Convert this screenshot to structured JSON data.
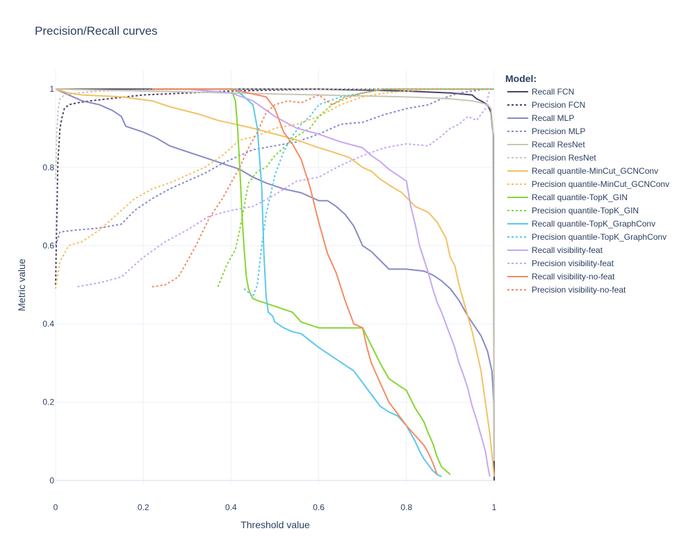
{
  "chart_data": {
    "type": "line",
    "title": "Precision/Recall curves",
    "xlabel": "Threshold value",
    "ylabel": "Metric value",
    "xlim": [
      0,
      1
    ],
    "ylim": [
      -0.01,
      1.05
    ],
    "xticks": [
      0,
      0.2,
      0.4,
      0.6,
      0.8,
      1
    ],
    "xtick_labels": [
      "0",
      "0.2",
      "0.4",
      "0.6",
      "0.8",
      "1"
    ],
    "yticks": [
      0,
      0.2,
      0.4,
      0.6,
      0.8,
      1
    ],
    "ytick_labels": [
      "0",
      "0.2",
      "0.4",
      "0.6",
      "0.8",
      "1"
    ],
    "grid": true,
    "legend_title": "Model:",
    "legend_position": "right",
    "series": [
      {
        "name": "Recall FCN",
        "color": "#4b4160",
        "dash": "solid",
        "x": [
          0,
          0.4,
          0.6,
          0.8,
          0.9,
          0.95,
          0.96,
          0.97,
          0.985,
          0.993,
          0.998,
          1.0
        ],
        "y": [
          1.0,
          1.0,
          1.0,
          0.995,
          0.99,
          0.985,
          0.975,
          0.97,
          0.96,
          0.94,
          0.88,
          0.0
        ]
      },
      {
        "name": "Precision FCN",
        "color": "#4b4160",
        "dash": "dot",
        "x": [
          0,
          0.002,
          0.005,
          0.01,
          0.015,
          0.02,
          0.03,
          0.05,
          0.08,
          0.12,
          0.2,
          0.3,
          0.4,
          0.6,
          0.8,
          1.0
        ],
        "y": [
          0.5,
          0.63,
          0.81,
          0.9,
          0.93,
          0.95,
          0.96,
          0.965,
          0.97,
          0.975,
          0.985,
          0.99,
          0.995,
          1.0,
          1.0,
          1.0
        ]
      },
      {
        "name": "Recall MLP",
        "color": "#8789c8",
        "dash": "solid",
        "x": [
          0,
          0.02,
          0.06,
          0.1,
          0.13,
          0.15,
          0.16,
          0.2,
          0.23,
          0.26,
          0.3,
          0.34,
          0.38,
          0.42,
          0.45,
          0.48,
          0.52,
          0.56,
          0.6,
          0.62,
          0.64,
          0.66,
          0.68,
          0.7,
          0.72,
          0.76,
          0.8,
          0.84,
          0.86,
          0.88,
          0.9,
          0.92,
          0.94,
          0.955,
          0.97,
          0.985,
          0.995,
          1.0
        ],
        "y": [
          1.0,
          0.99,
          0.97,
          0.96,
          0.945,
          0.93,
          0.905,
          0.89,
          0.875,
          0.855,
          0.84,
          0.825,
          0.81,
          0.795,
          0.775,
          0.76,
          0.745,
          0.735,
          0.715,
          0.715,
          0.7,
          0.68,
          0.65,
          0.6,
          0.585,
          0.54,
          0.54,
          0.535,
          0.525,
          0.51,
          0.49,
          0.46,
          0.42,
          0.395,
          0.37,
          0.33,
          0.28,
          0.18
        ]
      },
      {
        "name": "Precision MLP",
        "color": "#8789c8",
        "dash": "dot",
        "x": [
          0,
          0.01,
          0.05,
          0.1,
          0.15,
          0.18,
          0.22,
          0.26,
          0.3,
          0.34,
          0.38,
          0.42,
          0.45,
          0.5,
          0.55,
          0.6,
          0.65,
          0.7,
          0.75,
          0.8,
          0.85,
          0.88,
          0.92,
          0.95,
          0.98,
          1.0
        ],
        "y": [
          0.6,
          0.635,
          0.64,
          0.645,
          0.655,
          0.69,
          0.72,
          0.745,
          0.765,
          0.785,
          0.81,
          0.83,
          0.845,
          0.855,
          0.865,
          0.885,
          0.91,
          0.915,
          0.935,
          0.95,
          0.96,
          0.975,
          0.99,
          0.995,
          1.0,
          1.0
        ]
      },
      {
        "name": "Recall ResNet",
        "color": "#c9c7b5",
        "dash": "solid",
        "x": [
          0,
          0.2,
          0.4,
          0.6,
          0.8,
          0.9,
          0.95,
          0.97,
          0.985,
          0.993,
          0.997,
          1.0
        ],
        "y": [
          1.0,
          0.995,
          0.99,
          0.985,
          0.98,
          0.975,
          0.97,
          0.965,
          0.96,
          0.95,
          0.9,
          0.05
        ]
      },
      {
        "name": "Precision ResNet",
        "color": "#c9c7b5",
        "dash": "dot",
        "x": [
          0,
          0.003,
          0.006,
          0.01,
          0.02,
          0.05,
          0.1,
          0.3,
          0.6,
          1.0
        ],
        "y": [
          0.77,
          0.9,
          0.95,
          0.975,
          0.985,
          0.99,
          0.995,
          1.0,
          1.0,
          1.0
        ]
      },
      {
        "name": "Recall quantile-MinCut_GCNConv",
        "color": "#f3c164",
        "dash": "solid",
        "x": [
          0,
          0.03,
          0.06,
          0.15,
          0.22,
          0.26,
          0.33,
          0.37,
          0.41,
          0.45,
          0.5,
          0.55,
          0.6,
          0.63,
          0.67,
          0.7,
          0.72,
          0.74,
          0.76,
          0.79,
          0.82,
          0.85,
          0.87,
          0.89,
          0.9,
          0.91,
          0.92,
          0.93,
          0.94,
          0.95,
          0.96,
          0.97,
          0.98,
          0.99,
          1.0
        ],
        "y": [
          1.0,
          0.99,
          0.985,
          0.98,
          0.97,
          0.955,
          0.935,
          0.92,
          0.91,
          0.9,
          0.885,
          0.87,
          0.85,
          0.84,
          0.825,
          0.8,
          0.79,
          0.77,
          0.755,
          0.735,
          0.7,
          0.685,
          0.66,
          0.62,
          0.57,
          0.55,
          0.5,
          0.46,
          0.42,
          0.38,
          0.33,
          0.28,
          0.2,
          0.12,
          0.01
        ]
      },
      {
        "name": "Precision quantile-MinCut_GCNConv",
        "color": "#f3c164",
        "dash": "dot",
        "x": [
          0,
          0.01,
          0.03,
          0.06,
          0.1,
          0.14,
          0.18,
          0.22,
          0.26,
          0.3,
          0.34,
          0.38,
          0.42,
          0.46,
          0.5,
          0.55,
          0.6,
          0.65,
          0.7,
          0.75,
          0.8,
          0.85,
          0.9,
          0.95,
          1.0
        ],
        "y": [
          0.49,
          0.56,
          0.6,
          0.61,
          0.64,
          0.68,
          0.72,
          0.745,
          0.76,
          0.78,
          0.8,
          0.83,
          0.87,
          0.88,
          0.9,
          0.91,
          0.93,
          0.96,
          0.98,
          0.99,
          0.995,
          1.0,
          1.0,
          1.0,
          1.0
        ]
      },
      {
        "name": "Recall quantile-TopK_GIN",
        "color": "#86d630",
        "dash": "solid",
        "x": [
          0.36,
          0.4,
          0.41,
          0.415,
          0.42,
          0.425,
          0.43,
          0.435,
          0.44,
          0.445,
          0.45,
          0.46,
          0.5,
          0.54,
          0.56,
          0.6,
          0.65,
          0.7,
          0.72,
          0.74,
          0.75,
          0.76,
          0.78,
          0.8,
          0.82,
          0.84,
          0.85,
          0.86,
          0.87,
          0.88,
          0.89,
          0.9
        ],
        "y": [
          1.0,
          1.0,
          0.97,
          0.9,
          0.8,
          0.68,
          0.59,
          0.52,
          0.49,
          0.475,
          0.465,
          0.46,
          0.445,
          0.43,
          0.405,
          0.39,
          0.39,
          0.39,
          0.345,
          0.3,
          0.28,
          0.26,
          0.245,
          0.23,
          0.185,
          0.15,
          0.12,
          0.095,
          0.06,
          0.035,
          0.025,
          0.015
        ]
      },
      {
        "name": "Precision quantile-TopK_GIN",
        "color": "#86d630",
        "dash": "dot",
        "x": [
          0.37,
          0.39,
          0.41,
          0.42,
          0.43,
          0.44,
          0.46,
          0.48,
          0.5,
          0.52,
          0.55,
          0.58,
          0.6,
          0.63,
          0.66,
          0.7,
          0.75,
          0.8,
          0.85,
          0.9,
          0.95,
          1.0
        ],
        "y": [
          0.495,
          0.55,
          0.59,
          0.64,
          0.7,
          0.76,
          0.79,
          0.8,
          0.83,
          0.85,
          0.88,
          0.9,
          0.93,
          0.96,
          0.98,
          0.99,
          1.0,
          1.0,
          1.0,
          1.0,
          1.0,
          1.0
        ]
      },
      {
        "name": "Recall quantile-TopK_GraphConv",
        "color": "#5bc8eb",
        "dash": "solid",
        "x": [
          0.35,
          0.41,
          0.43,
          0.45,
          0.46,
          0.47,
          0.475,
          0.48,
          0.485,
          0.49,
          0.495,
          0.5,
          0.52,
          0.54,
          0.56,
          0.6,
          0.64,
          0.68,
          0.7,
          0.72,
          0.74,
          0.76,
          0.78,
          0.8,
          0.82,
          0.83,
          0.84,
          0.85,
          0.86,
          0.87,
          0.88
        ],
        "y": [
          1.0,
          1.0,
          0.98,
          0.96,
          0.9,
          0.75,
          0.58,
          0.47,
          0.43,
          0.425,
          0.42,
          0.405,
          0.39,
          0.38,
          0.375,
          0.34,
          0.31,
          0.28,
          0.25,
          0.22,
          0.19,
          0.175,
          0.165,
          0.14,
          0.1,
          0.075,
          0.055,
          0.04,
          0.025,
          0.015,
          0.01
        ]
      },
      {
        "name": "Precision quantile-TopK_GraphConv",
        "color": "#5bc8eb",
        "dash": "dot",
        "x": [
          0.43,
          0.45,
          0.46,
          0.47,
          0.48,
          0.49,
          0.5,
          0.52,
          0.54,
          0.56,
          0.58,
          0.6,
          0.65,
          0.7,
          0.75,
          0.8,
          0.9,
          1.0
        ],
        "y": [
          0.49,
          0.47,
          0.5,
          0.6,
          0.68,
          0.73,
          0.78,
          0.84,
          0.88,
          0.91,
          0.93,
          0.96,
          0.98,
          0.99,
          1.0,
          1.0,
          1.0,
          1.0
        ]
      },
      {
        "name": "Recall visibility-feat",
        "color": "#c6a7f2",
        "dash": "solid",
        "x": [
          0.3,
          0.4,
          0.45,
          0.5,
          0.55,
          0.6,
          0.65,
          0.7,
          0.72,
          0.74,
          0.76,
          0.78,
          0.8,
          0.81,
          0.82,
          0.83,
          0.84,
          0.85,
          0.86,
          0.87,
          0.88,
          0.89,
          0.9,
          0.91,
          0.92,
          0.93,
          0.94,
          0.95,
          0.96,
          0.97,
          0.98,
          0.985,
          0.99
        ],
        "y": [
          1.0,
          0.99,
          0.97,
          0.93,
          0.9,
          0.885,
          0.865,
          0.85,
          0.83,
          0.815,
          0.795,
          0.78,
          0.765,
          0.7,
          0.655,
          0.6,
          0.565,
          0.53,
          0.49,
          0.455,
          0.43,
          0.4,
          0.37,
          0.34,
          0.3,
          0.27,
          0.235,
          0.19,
          0.155,
          0.115,
          0.075,
          0.04,
          0.01
        ]
      },
      {
        "name": "Precision visibility-feat",
        "color": "#c6a7f2",
        "dash": "dot",
        "x": [
          0.05,
          0.1,
          0.15,
          0.2,
          0.25,
          0.3,
          0.35,
          0.4,
          0.45,
          0.5,
          0.55,
          0.6,
          0.65,
          0.7,
          0.75,
          0.8,
          0.85,
          0.88,
          0.9,
          0.92,
          0.94,
          0.96,
          0.98,
          0.99
        ],
        "y": [
          0.495,
          0.505,
          0.52,
          0.57,
          0.61,
          0.64,
          0.675,
          0.69,
          0.7,
          0.73,
          0.765,
          0.775,
          0.805,
          0.83,
          0.85,
          0.86,
          0.855,
          0.88,
          0.9,
          0.91,
          0.93,
          0.92,
          0.95,
          1.0
        ]
      },
      {
        "name": "Recall visibility-no-feat",
        "color": "#f58b62",
        "dash": "solid",
        "x": [
          0.22,
          0.3,
          0.4,
          0.48,
          0.5,
          0.52,
          0.54,
          0.56,
          0.58,
          0.6,
          0.62,
          0.64,
          0.66,
          0.68,
          0.7,
          0.71,
          0.72,
          0.74,
          0.76,
          0.78,
          0.8,
          0.82,
          0.84,
          0.85,
          0.86,
          0.87
        ],
        "y": [
          1.0,
          1.0,
          1.0,
          0.98,
          0.95,
          0.89,
          0.86,
          0.82,
          0.75,
          0.66,
          0.58,
          0.53,
          0.46,
          0.4,
          0.39,
          0.34,
          0.3,
          0.25,
          0.2,
          0.17,
          0.14,
          0.115,
          0.09,
          0.07,
          0.045,
          0.015
        ]
      },
      {
        "name": "Precision visibility-no-feat",
        "color": "#f58b62",
        "dash": "dot",
        "x": [
          0.22,
          0.25,
          0.28,
          0.3,
          0.32,
          0.35,
          0.38,
          0.4,
          0.42,
          0.44,
          0.46,
          0.48,
          0.5,
          0.53,
          0.56,
          0.6,
          0.63,
          0.66,
          0.7,
          0.75,
          0.8,
          0.9,
          1.0
        ],
        "y": [
          0.495,
          0.5,
          0.52,
          0.56,
          0.6,
          0.67,
          0.72,
          0.76,
          0.8,
          0.85,
          0.89,
          0.94,
          0.96,
          0.97,
          0.965,
          0.985,
          0.96,
          0.975,
          0.99,
          1.0,
          1.0,
          1.0,
          1.0
        ]
      }
    ]
  }
}
